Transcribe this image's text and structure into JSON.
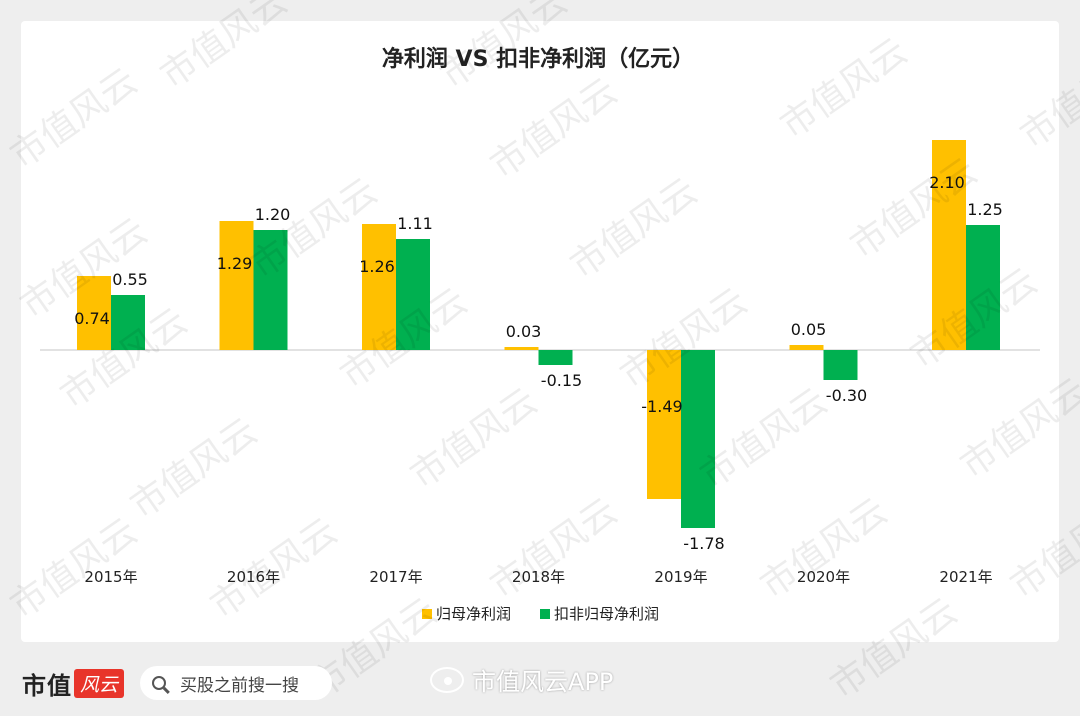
{
  "chart_data": {
    "type": "bar",
    "title": "净利润  VS  扣非净利润（亿元）",
    "categories": [
      "2015年",
      "2016年",
      "2017年",
      "2018年",
      "2019年",
      "2020年",
      "2021年"
    ],
    "series": [
      {
        "name": "归母净利润",
        "color": "#ffc000",
        "values": [
          0.74,
          1.29,
          1.26,
          0.03,
          -1.49,
          0.05,
          2.1
        ]
      },
      {
        "name": "扣非归母净利润",
        "color": "#00b050",
        "values": [
          0.55,
          1.2,
          1.11,
          -0.15,
          -1.78,
          -0.3,
          1.25
        ]
      }
    ],
    "data_labels": [
      [
        "0.74",
        "1.29",
        "1.26",
        "0.03",
        "-1.49",
        "0.05",
        "2.10"
      ],
      [
        "0.55",
        "1.20",
        "1.11",
        "-0.15",
        "-1.78",
        "-0.30",
        "1.25"
      ]
    ],
    "ylim": [
      -2.0,
      2.2
    ],
    "grid": false,
    "legend": "bottom-center",
    "xlabel": "",
    "ylabel": ""
  },
  "watermark": {
    "text": "市值风云"
  },
  "footer": {
    "brand": "市值",
    "brand_script": "风云",
    "search_placeholder": "买股之前搜一搜",
    "weibo_handle": "市值风云APP",
    "icons": [
      "search-icon",
      "weibo-icon"
    ]
  }
}
